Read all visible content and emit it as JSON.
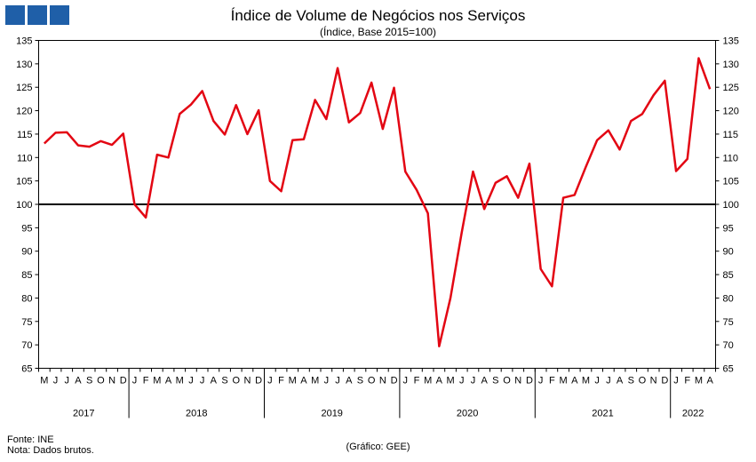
{
  "header": {
    "title": "Índice de Volume de Negócios nos Serviços",
    "subtitle": "(Índice, Base 2015=100)"
  },
  "footer": {
    "source": "Fonte: INE",
    "note": "Nota: Dados brutos.",
    "credit": "(Gráfico: GEE)"
  },
  "colors": {
    "line": "#e30613",
    "reference": "#000000",
    "logo": "#1f5fa8"
  },
  "chart_data": {
    "type": "line",
    "title": "Índice de Volume de Negócios nos Serviços",
    "subtitle": "(Índice, Base 2015=100)",
    "xlabel": "",
    "ylabel": "",
    "ylim": [
      65,
      135
    ],
    "yticks": [
      65,
      70,
      75,
      80,
      85,
      90,
      95,
      100,
      105,
      110,
      115,
      120,
      125,
      130,
      135
    ],
    "grid": false,
    "reference_line": 100,
    "month_labels": [
      "M",
      "J",
      "J",
      "A",
      "S",
      "O",
      "N",
      "D",
      "J",
      "F",
      "M",
      "A",
      "M",
      "J",
      "J",
      "A",
      "S",
      "O",
      "N",
      "D",
      "J",
      "F",
      "M",
      "A",
      "M",
      "J",
      "J",
      "A",
      "S",
      "O",
      "N",
      "D",
      "J",
      "F",
      "M",
      "A",
      "M",
      "J",
      "J",
      "A",
      "S",
      "O",
      "N",
      "D",
      "J",
      "F",
      "M",
      "A",
      "M",
      "J",
      "J",
      "A",
      "S",
      "O",
      "N",
      "D",
      "J",
      "F",
      "M",
      "A"
    ],
    "years": [
      {
        "label": "2017",
        "months": 8
      },
      {
        "label": "2018",
        "months": 12
      },
      {
        "label": "2019",
        "months": 12
      },
      {
        "label": "2020",
        "months": 12
      },
      {
        "label": "2021",
        "months": 12
      },
      {
        "label": "2022",
        "months": 4
      }
    ],
    "series": [
      {
        "values": [
          113.0,
          115.3,
          115.4,
          112.6,
          112.3,
          113.5,
          112.7,
          115.1,
          100.0,
          97.2,
          110.6,
          110.0,
          119.3,
          121.3,
          124.2,
          117.8,
          114.9,
          121.2,
          115.0,
          120.1,
          105.0,
          102.8,
          113.7,
          113.9,
          122.3,
          118.2,
          129.1,
          117.5,
          119.5,
          126.0,
          116.1,
          124.9,
          107.0,
          103.1,
          98.1,
          69.7,
          80.0,
          94.0,
          107.0,
          99.0,
          104.6,
          106.0,
          101.4,
          108.7,
          86.2,
          82.5,
          101.4,
          102.0,
          108.0,
          113.7,
          115.8,
          111.7,
          117.8,
          119.3,
          123.3,
          126.4,
          107.1,
          109.7,
          131.2,
          124.6
        ]
      }
    ]
  }
}
